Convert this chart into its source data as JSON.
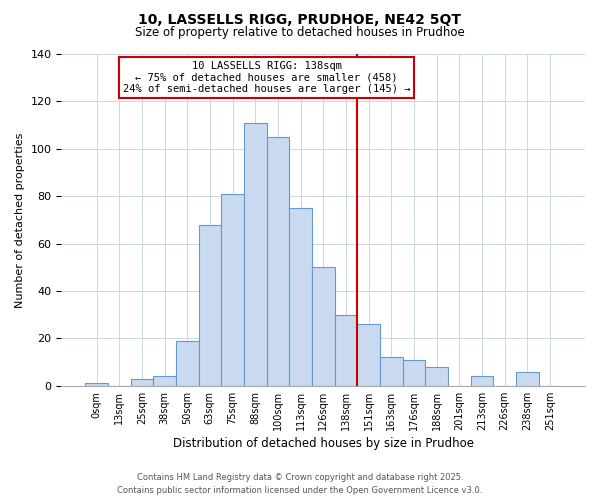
{
  "title": "10, LASSELLS RIGG, PRUDHOE, NE42 5QT",
  "subtitle": "Size of property relative to detached houses in Prudhoe",
  "xlabel": "Distribution of detached houses by size in Prudhoe",
  "ylabel": "Number of detached properties",
  "bar_labels": [
    "0sqm",
    "13sqm",
    "25sqm",
    "38sqm",
    "50sqm",
    "63sqm",
    "75sqm",
    "88sqm",
    "100sqm",
    "113sqm",
    "126sqm",
    "138sqm",
    "151sqm",
    "163sqm",
    "176sqm",
    "188sqm",
    "201sqm",
    "213sqm",
    "226sqm",
    "238sqm",
    "251sqm"
  ],
  "bar_heights": [
    1,
    0,
    3,
    4,
    19,
    68,
    81,
    111,
    105,
    75,
    50,
    30,
    26,
    12,
    11,
    8,
    0,
    4,
    0,
    6,
    0
  ],
  "bar_color": "#c9d9f0",
  "bar_edge_color": "#6699cc",
  "vline_x": 11.5,
  "vline_color": "#cc0000",
  "annotation_text": "10 LASSELLS RIGG: 138sqm\n← 75% of detached houses are smaller (458)\n24% of semi-detached houses are larger (145) →",
  "annotation_box_edge_color": "#cc0000",
  "ylim": [
    0,
    140
  ],
  "yticks": [
    0,
    20,
    40,
    60,
    80,
    100,
    120,
    140
  ],
  "footer_line1": "Contains HM Land Registry data © Crown copyright and database right 2025.",
  "footer_line2": "Contains public sector information licensed under the Open Government Licence v3.0.",
  "background_color": "#ffffff",
  "grid_color": "#c8d8e8"
}
